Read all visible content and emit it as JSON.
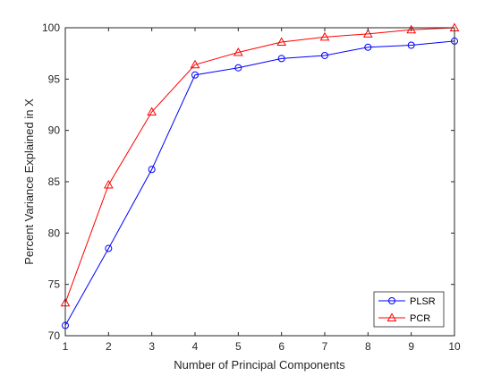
{
  "chart_data": {
    "type": "line",
    "title": "",
    "xlabel": "Number of Principal Components",
    "ylabel": "Percent Variance Explained in X",
    "x": [
      1,
      2,
      3,
      4,
      5,
      6,
      7,
      8,
      9,
      10
    ],
    "xticks": [
      "1",
      "2",
      "3",
      "4",
      "5",
      "6",
      "7",
      "8",
      "9",
      "10"
    ],
    "yticks": [
      "70",
      "75",
      "80",
      "85",
      "90",
      "95",
      "100"
    ],
    "xlim": [
      1,
      10
    ],
    "ylim": [
      70,
      100
    ],
    "grid": false,
    "legend_position": "bottom-right",
    "series": [
      {
        "name": "PLSR",
        "color": "#0000ff",
        "marker": "circle",
        "values": [
          71.0,
          78.5,
          86.2,
          95.4,
          96.1,
          97.0,
          97.3,
          98.1,
          98.3,
          98.7
        ]
      },
      {
        "name": "PCR",
        "color": "#ff0000",
        "marker": "triangle",
        "values": [
          73.2,
          84.7,
          91.8,
          96.4,
          97.6,
          98.6,
          99.1,
          99.4,
          99.8,
          100.0
        ]
      }
    ]
  }
}
